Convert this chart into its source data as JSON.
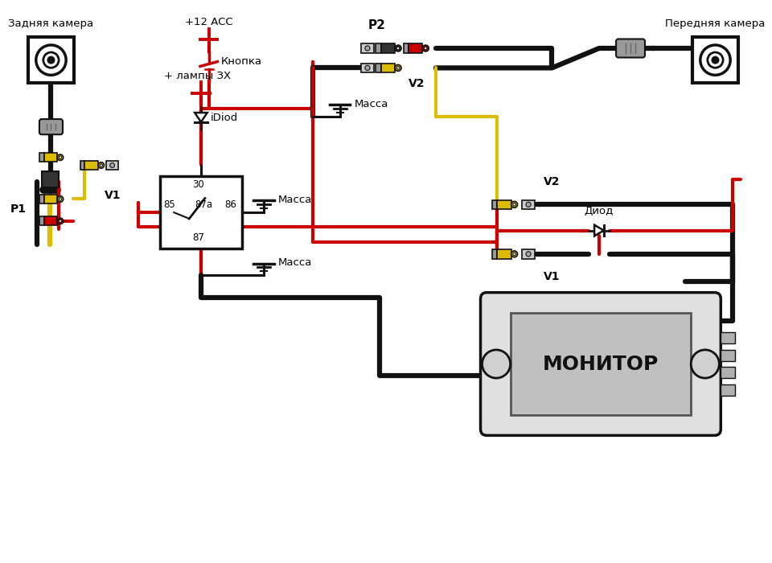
{
  "bg_color": "#ffffff",
  "label_rear_camera": "Задняя камера",
  "label_front_camera": "Передняя камера",
  "label_p1": "P1",
  "label_p2": "P2",
  "label_v1_left": "V1",
  "label_v2_top": "V2",
  "label_v2_right": "V2",
  "label_v1_right": "V1",
  "label_acc": "+12 ACC",
  "label_button": "Кнопка",
  "label_lamp": "+ лампы ЗХ",
  "label_idiod": "iDiod",
  "label_massa1": "Масса",
  "label_massa2": "Масса",
  "label_massa3": "Масса",
  "label_diod": "Диод",
  "label_monitor": "МОНИТОР",
  "wire_red": "#cc0000",
  "wire_black": "#111111",
  "wire_yellow": "#ddbb00",
  "connector_gray": "#999999",
  "connector_yellow": "#ddbb00",
  "connector_red": "#cc0000",
  "connector_black": "#333333",
  "connector_light_gray": "#cccccc"
}
